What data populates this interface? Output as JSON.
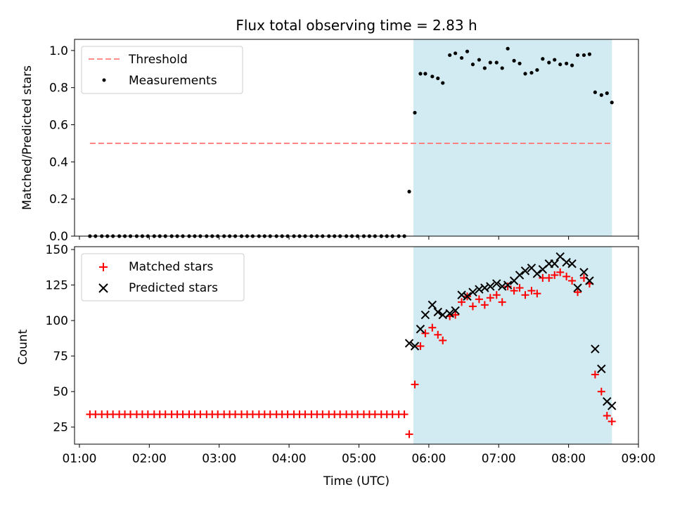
{
  "chart_data": [
    {
      "type": "scatter",
      "title": "Flux total observing time = 2.83 h",
      "ylabel": "Matched/Predicted stars",
      "xlabel": "",
      "xlim": [
        0.93,
        9.0
      ],
      "ylim": [
        0.0,
        1.06
      ],
      "yticks": [
        0.0,
        0.2,
        0.4,
        0.6,
        0.8,
        1.0
      ],
      "ytick_labels": [
        "0.0",
        "0.2",
        "0.4",
        "0.6",
        "0.8",
        "1.0"
      ],
      "shaded_span": [
        5.78,
        8.62
      ],
      "shaded_color": "#add8e6",
      "legend_position": "upper left",
      "threshold": {
        "name": "Threshold",
        "value": 0.5,
        "x_range": [
          1.15,
          8.62
        ],
        "color": "#ff7b7b"
      },
      "series": [
        {
          "name": "Measurements",
          "color": "#000000",
          "marker": "dot",
          "x": [
            1.15,
            1.23,
            1.32,
            1.4,
            1.48,
            1.57,
            1.65,
            1.73,
            1.82,
            1.9,
            1.98,
            2.07,
            2.15,
            2.23,
            2.32,
            2.4,
            2.48,
            2.57,
            2.65,
            2.73,
            2.82,
            2.9,
            2.98,
            3.07,
            3.15,
            3.23,
            3.32,
            3.4,
            3.48,
            3.57,
            3.65,
            3.73,
            3.82,
            3.9,
            3.98,
            4.07,
            4.15,
            4.23,
            4.32,
            4.4,
            4.48,
            4.57,
            4.65,
            4.73,
            4.82,
            4.9,
            4.98,
            5.07,
            5.15,
            5.23,
            5.32,
            5.4,
            5.48,
            5.57,
            5.65,
            5.72,
            5.8,
            5.88,
            5.95,
            6.05,
            6.13,
            6.2,
            6.3,
            6.38,
            6.47,
            6.55,
            6.63,
            6.72,
            6.8,
            6.88,
            6.97,
            7.05,
            7.13,
            7.22,
            7.3,
            7.38,
            7.47,
            7.55,
            7.63,
            7.72,
            7.8,
            7.88,
            7.97,
            8.05,
            8.13,
            8.22,
            8.3,
            8.38,
            8.47,
            8.55,
            8.62
          ],
          "y": [
            0,
            0,
            0,
            0,
            0,
            0,
            0,
            0,
            0,
            0,
            0,
            0,
            0,
            0,
            0,
            0,
            0,
            0,
            0,
            0,
            0,
            0,
            0,
            0,
            0,
            0,
            0,
            0,
            0,
            0,
            0,
            0,
            0,
            0,
            0,
            0,
            0,
            0,
            0,
            0,
            0,
            0,
            0,
            0,
            0,
            0,
            0,
            0,
            0,
            0,
            0,
            0,
            0,
            0,
            0,
            0.24,
            0.665,
            0.875,
            0.875,
            0.86,
            0.85,
            0.825,
            0.975,
            0.985,
            0.96,
            0.995,
            0.925,
            0.95,
            0.905,
            0.935,
            0.935,
            0.905,
            1.01,
            0.945,
            0.93,
            0.875,
            0.88,
            0.895,
            0.955,
            0.935,
            0.95,
            0.925,
            0.93,
            0.92,
            0.975,
            0.975,
            0.98,
            0.775,
            0.76,
            0.77,
            0.72
          ]
        }
      ]
    },
    {
      "type": "scatter",
      "title": "",
      "xlabel": "Time (UTC)",
      "ylabel": "Count",
      "xlim": [
        0.93,
        9.0
      ],
      "ylim": [
        13,
        152
      ],
      "yticks": [
        25,
        50,
        75,
        100,
        125,
        150
      ],
      "ytick_labels": [
        "25",
        "50",
        "75",
        "100",
        "125",
        "150"
      ],
      "xticks": [
        1,
        2,
        3,
        4,
        5,
        6,
        7,
        8,
        9
      ],
      "xtick_labels": [
        "01:00",
        "02:00",
        "03:00",
        "04:00",
        "05:00",
        "06:00",
        "07:00",
        "08:00",
        "09:00"
      ],
      "shaded_span": [
        5.78,
        8.62
      ],
      "shaded_color": "#add8e6",
      "legend_position": "upper left",
      "series": [
        {
          "name": "Matched stars",
          "color": "#ff0000",
          "marker": "plus",
          "x": [
            1.15,
            1.23,
            1.32,
            1.4,
            1.48,
            1.57,
            1.65,
            1.73,
            1.82,
            1.9,
            1.98,
            2.07,
            2.15,
            2.23,
            2.32,
            2.4,
            2.48,
            2.57,
            2.65,
            2.73,
            2.82,
            2.9,
            2.98,
            3.07,
            3.15,
            3.23,
            3.32,
            3.4,
            3.48,
            3.57,
            3.65,
            3.73,
            3.82,
            3.9,
            3.98,
            4.07,
            4.15,
            4.23,
            4.32,
            4.4,
            4.48,
            4.57,
            4.65,
            4.73,
            4.82,
            4.9,
            4.98,
            5.07,
            5.15,
            5.23,
            5.32,
            5.4,
            5.48,
            5.57,
            5.65,
            5.72,
            5.8,
            5.88,
            5.95,
            6.05,
            6.13,
            6.2,
            6.3,
            6.38,
            6.47,
            6.55,
            6.63,
            6.72,
            6.8,
            6.88,
            6.97,
            7.05,
            7.13,
            7.22,
            7.3,
            7.38,
            7.47,
            7.55,
            7.63,
            7.72,
            7.8,
            7.88,
            7.97,
            8.05,
            8.13,
            8.22,
            8.3,
            8.38,
            8.47,
            8.55,
            8.62
          ],
          "y": [
            34,
            34,
            34,
            34,
            34,
            34,
            34,
            34,
            34,
            34,
            34,
            34,
            34,
            34,
            34,
            34,
            34,
            34,
            34,
            34,
            34,
            34,
            34,
            34,
            34,
            34,
            34,
            34,
            34,
            34,
            34,
            34,
            34,
            34,
            34,
            34,
            34,
            34,
            34,
            34,
            34,
            34,
            34,
            34,
            34,
            34,
            34,
            34,
            34,
            34,
            34,
            34,
            34,
            34,
            34,
            20,
            55,
            82,
            91,
            95,
            90,
            86,
            103,
            104,
            113,
            117,
            110,
            115,
            111,
            116,
            118,
            113,
            124,
            121,
            123,
            118,
            121,
            119,
            130,
            130,
            132,
            134,
            131,
            128,
            120,
            130,
            126,
            62,
            50,
            33,
            29
          ]
        },
        {
          "name": "Predicted stars",
          "color": "#000000",
          "marker": "x",
          "x": [
            5.72,
            5.8,
            5.88,
            5.95,
            6.05,
            6.13,
            6.2,
            6.3,
            6.38,
            6.47,
            6.55,
            6.63,
            6.72,
            6.8,
            6.88,
            6.97,
            7.05,
            7.13,
            7.22,
            7.3,
            7.38,
            7.47,
            7.55,
            7.63,
            7.72,
            7.8,
            7.88,
            7.97,
            8.05,
            8.13,
            8.22,
            8.3,
            8.38,
            8.47,
            8.55,
            8.62
          ],
          "y": [
            84,
            82,
            94,
            104,
            111,
            106,
            104,
            105,
            107,
            118,
            117,
            120,
            122,
            123,
            124,
            126,
            124,
            125,
            128,
            132,
            135,
            137,
            133,
            136,
            140,
            140,
            145,
            141,
            140,
            123,
            134,
            128,
            80,
            66,
            43,
            40
          ]
        }
      ]
    }
  ]
}
